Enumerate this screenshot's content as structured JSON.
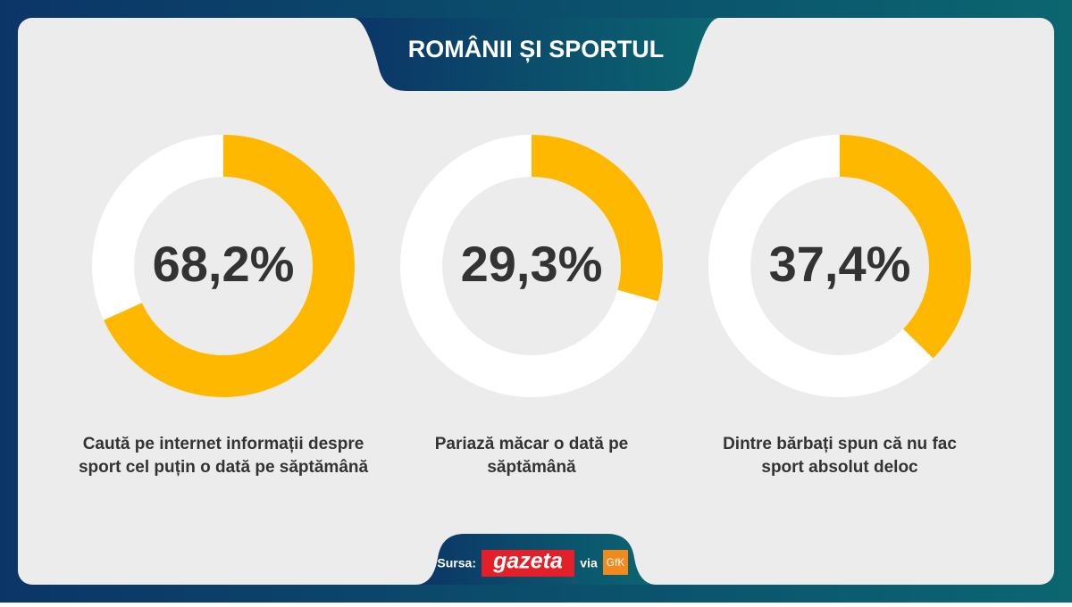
{
  "title": "ROMÂNII ȘI SPORTUL",
  "chart_data": [
    {
      "type": "donut",
      "values": [
        68.2
      ],
      "value_labels": [
        "68,2%"
      ],
      "color": "#ffb800",
      "caption": [
        "Caută pe internet informații despre",
        "sport cel puțin o dată pe săptămână"
      ]
    },
    {
      "type": "donut",
      "values": [
        29.3
      ],
      "value_labels": [
        "29,3%"
      ],
      "color": "#ffb800",
      "caption": [
        "Pariază măcar o dată pe",
        "săptămână"
      ]
    },
    {
      "type": "donut",
      "values": [
        37.4
      ],
      "value_labels": [
        "37,4%"
      ],
      "color": "#ffb800",
      "caption": [
        "Dintre bărbați spun că nu fac",
        "sport absolut deloc"
      ]
    }
  ],
  "source": {
    "label": "Sursa:",
    "publisher": "gazeta",
    "via": "via",
    "partner": "GfK"
  }
}
